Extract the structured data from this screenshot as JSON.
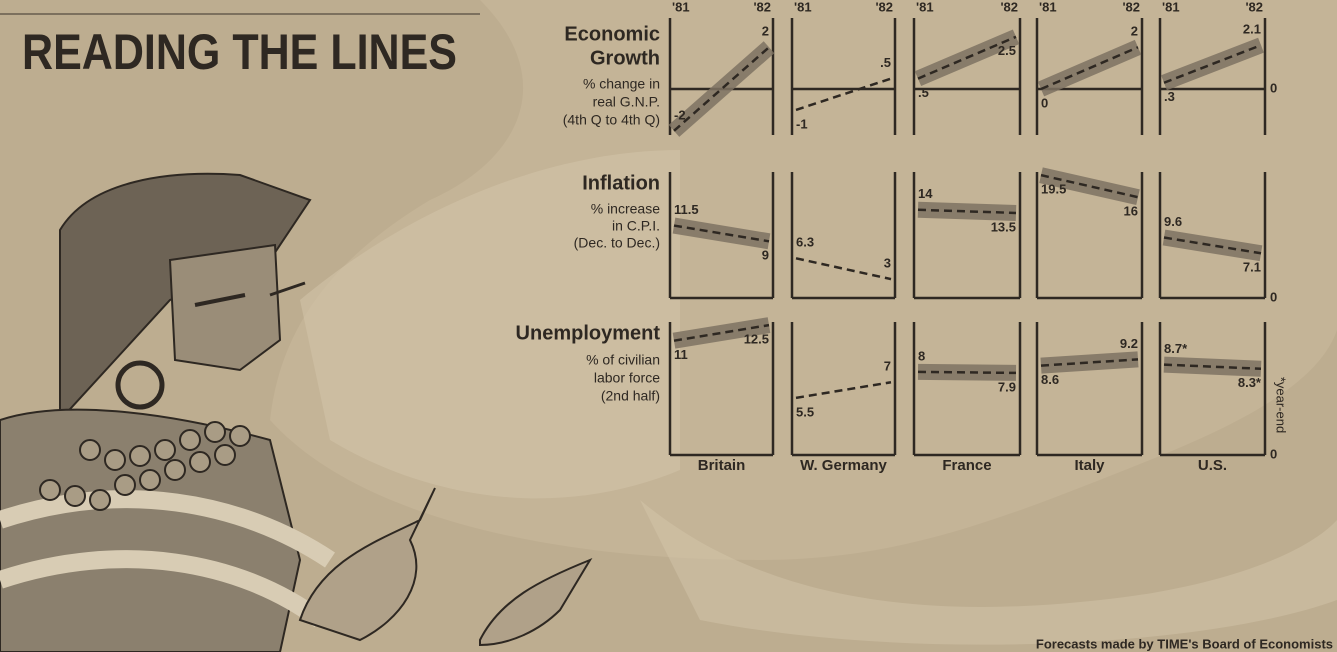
{
  "title": "READING THE LINES",
  "footnote": "*year-end",
  "source": "Forecasts made by TIME's Board of Economists",
  "chart_data": {
    "type": "line",
    "x": [
      "'81",
      "'82"
    ],
    "columns": [
      "Britain",
      "W. Germany",
      "France",
      "Italy",
      "U.S."
    ],
    "rows": [
      {
        "title": [
          "Economic",
          "Growth"
        ],
        "subtitle": [
          "% change in",
          "real G.N.P.",
          "(4th Q to 4th Q)"
        ],
        "ylim": [
          -2.2,
          3.4
        ],
        "yticks": [
          0
        ],
        "series": [
          {
            "values": [
              -2,
              2
            ],
            "band": true
          },
          {
            "values": [
              -1,
              0.5
            ],
            "value_labels": [
              "-1",
              ".5"
            ],
            "band": false
          },
          {
            "values": [
              0.5,
              2.5
            ],
            "value_labels": [
              ".5",
              "2.5"
            ],
            "band": true
          },
          {
            "values": [
              0,
              2
            ],
            "band": true
          },
          {
            "values": [
              0.3,
              2.1
            ],
            "value_labels": [
              ".3",
              "2.1"
            ],
            "band": true
          }
        ]
      },
      {
        "title": [
          "Inflation"
        ],
        "subtitle": [
          "% increase",
          "in C.P.I.",
          "(Dec. to Dec.)"
        ],
        "ylim": [
          0,
          20
        ],
        "yticks": [
          0
        ],
        "series": [
          {
            "values": [
              11.5,
              9
            ],
            "band": true
          },
          {
            "values": [
              6.3,
              3
            ],
            "band": false
          },
          {
            "values": [
              14,
              13.5
            ],
            "band": true
          },
          {
            "values": [
              19.5,
              16
            ],
            "band": true
          },
          {
            "values": [
              9.6,
              7.1
            ],
            "band": true
          }
        ]
      },
      {
        "title": [
          "Unemployment"
        ],
        "subtitle": [
          "% of civilian",
          "labor force",
          "(2nd half)"
        ],
        "ylim": [
          0,
          12.8
        ],
        "yticks": [
          0
        ],
        "series": [
          {
            "values": [
              11,
              12.5
            ],
            "band": true
          },
          {
            "values": [
              5.5,
              7
            ],
            "band": false
          },
          {
            "values": [
              8,
              7.9
            ],
            "band": true
          },
          {
            "values": [
              8.6,
              9.2
            ],
            "band": true
          },
          {
            "values": [
              8.7,
              8.3
            ],
            "value_labels": [
              "8.7*",
              "8.3*"
            ],
            "band": true
          }
        ]
      }
    ]
  }
}
